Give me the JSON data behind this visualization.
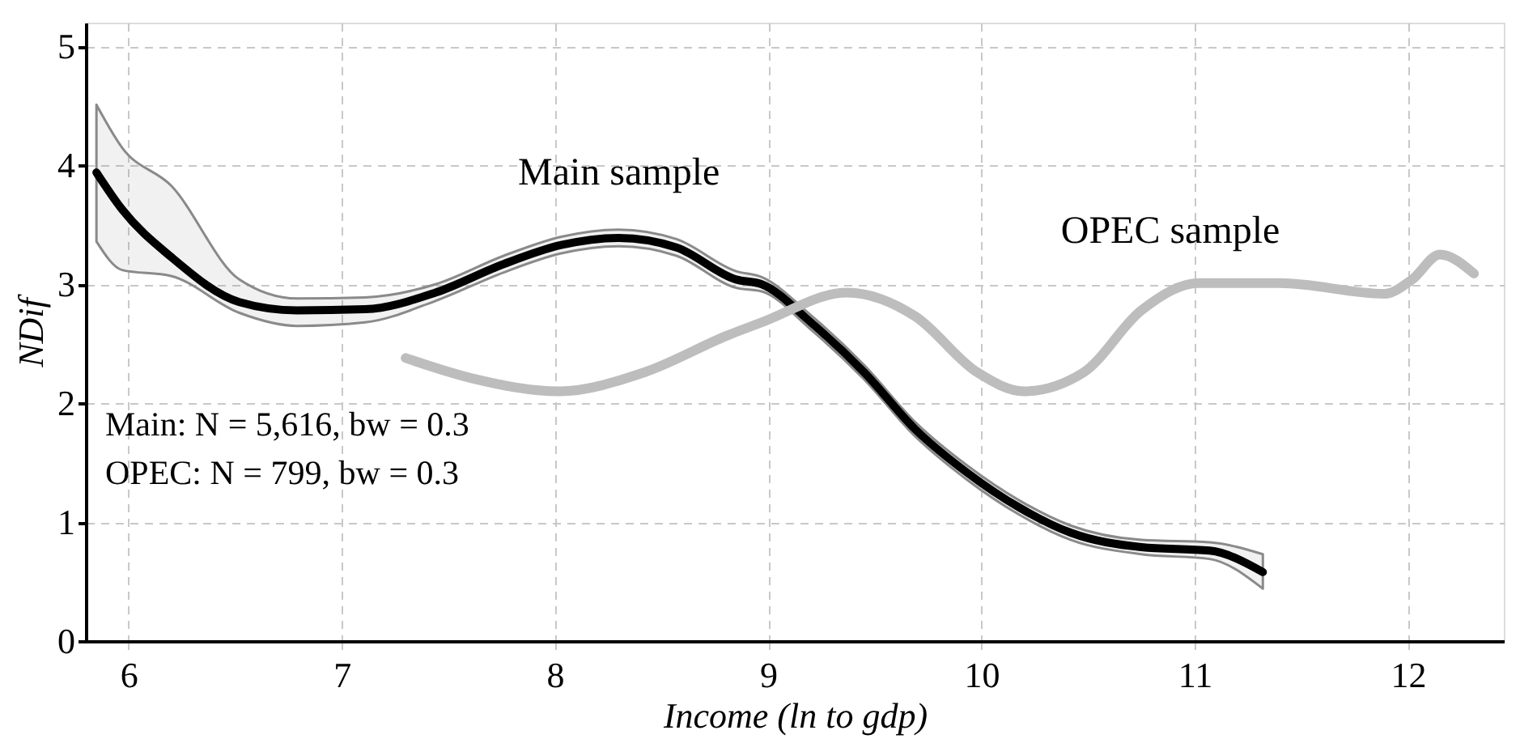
{
  "chart_data": {
    "type": "line",
    "xlabel": "Income (ln to gdp)",
    "ylabel": "NDif",
    "xlim": [
      5.8,
      12.45
    ],
    "ylim": [
      0,
      5.2
    ],
    "xticks": [
      6,
      7,
      8,
      9,
      10,
      11,
      12
    ],
    "yticks": [
      0,
      1,
      2,
      3,
      4,
      5
    ],
    "grid": true,
    "line_style": "solid",
    "series": [
      {
        "name": "Main sample",
        "color": "#000000",
        "x": [
          5.85,
          5.97,
          6.2,
          6.52,
          6.79,
          7.11,
          7.44,
          7.76,
          8.03,
          8.3,
          8.57,
          8.85,
          8.97,
          9.2,
          9.45,
          9.69,
          9.93,
          10.18,
          10.42,
          10.75,
          11.07,
          11.32
        ],
        "values": [
          3.94,
          3.63,
          3.23,
          2.85,
          2.78,
          2.79,
          2.93,
          3.17,
          3.33,
          3.39,
          3.31,
          3.04,
          3.0,
          2.68,
          2.26,
          1.78,
          1.42,
          1.12,
          0.91,
          0.79,
          0.76,
          0.58
        ],
        "upper": [
          4.51,
          4.15,
          3.83,
          3.04,
          2.88,
          2.89,
          3.0,
          3.24,
          3.4,
          3.46,
          3.38,
          3.11,
          3.06,
          2.74,
          2.32,
          1.84,
          1.48,
          1.18,
          0.97,
          0.85,
          0.83,
          0.73
        ],
        "lower": [
          3.36,
          3.12,
          3.07,
          2.76,
          2.65,
          2.68,
          2.86,
          3.1,
          3.26,
          3.32,
          3.24,
          2.97,
          2.94,
          2.62,
          2.2,
          1.72,
          1.36,
          1.06,
          0.85,
          0.73,
          0.69,
          0.44
        ]
      },
      {
        "name": "OPEC sample",
        "color": "#bdbdbd",
        "x": [
          7.3,
          7.61,
          8.02,
          8.42,
          8.81,
          8.97,
          9.37,
          9.69,
          9.98,
          10.2,
          10.48,
          10.75,
          11.02,
          11.4,
          11.89,
          12.02,
          12.15,
          12.31
        ],
        "values": [
          2.38,
          2.21,
          2.1,
          2.26,
          2.57,
          2.68,
          2.93,
          2.73,
          2.26,
          2.1,
          2.26,
          2.78,
          3.01,
          3.01,
          2.92,
          3.04,
          3.25,
          3.09
        ]
      }
    ],
    "annotations": [
      "Main: N = 5,616, bw = 0.3",
      "OPEC: N = 799, bw = 0.3"
    ]
  }
}
